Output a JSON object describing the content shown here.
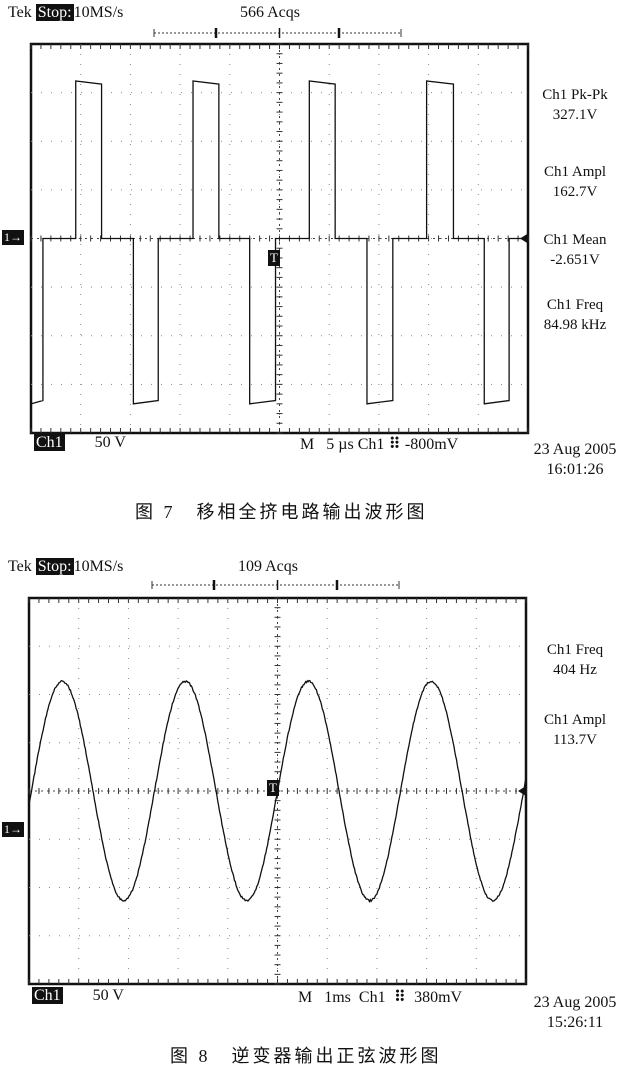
{
  "figures": [
    {
      "header": {
        "brand": "Tek",
        "state": "Stop:",
        "rate": "10MS/s",
        "acqs": "566 Acqs"
      },
      "footer": {
        "channel": "Ch1",
        "volts_div": "50 V",
        "mode": "M",
        "time_div": "5 µs",
        "trig_src": "Ch1",
        "trig_slope_icon": "rising-edge-icon",
        "trig_level": "-800mV"
      },
      "timestamp": {
        "date": "23 Aug 2005",
        "time": "16:01:26"
      },
      "measurements": [
        {
          "label": "Ch1 Pk-Pk",
          "value": "327.1V"
        },
        {
          "label": "Ch1 Ampl",
          "value": "162.7V"
        },
        {
          "label": "Ch1 Mean",
          "value": "-2.651V"
        },
        {
          "label": "Ch1 Freq",
          "value": "84.98 kHz"
        }
      ],
      "ground_marker": "1→",
      "trigger_marker": "T",
      "caption": "图 7　移相全挤电路输出波形图"
    },
    {
      "header": {
        "brand": "Tek",
        "state": "Stop:",
        "rate": "10MS/s",
        "acqs": "109 Acqs"
      },
      "footer": {
        "channel": "Ch1",
        "volts_div": "50 V",
        "mode": "M",
        "time_div": "1ms",
        "trig_src": "Ch1",
        "trig_slope_icon": "rising-edge-icon",
        "trig_level": "380mV"
      },
      "timestamp": {
        "date": "23 Aug 2005",
        "time": "15:26:11"
      },
      "measurements": [
        {
          "label": "Ch1 Freq",
          "value": "404 Hz"
        },
        {
          "label": "Ch1 Ampl",
          "value": "113.7V"
        }
      ],
      "ground_marker": "1→",
      "trigger_marker": "T",
      "caption": "图 8　逆变器输出正弦波形图"
    }
  ],
  "chart_data": [
    {
      "type": "line",
      "waveform": "phase-shifted square pulses",
      "x_unit": "µs",
      "y_unit": "V",
      "x_divisions": 10,
      "y_divisions": 8,
      "time_per_div": 5,
      "volts_per_div": 50,
      "positive_level": 162,
      "negative_level": -170,
      "period": 11.77,
      "positive_pulses": [
        [
          4.5,
          7.1
        ],
        [
          16.3,
          18.9
        ],
        [
          28.0,
          30.6
        ],
        [
          39.8,
          42.5
        ]
      ],
      "negative_pulses": [
        [
          -1.0,
          1.2
        ],
        [
          10.3,
          12.8
        ],
        [
          22.0,
          24.6
        ],
        [
          33.8,
          36.4
        ],
        [
          45.6,
          48.1
        ]
      ],
      "grid": true
    },
    {
      "type": "line",
      "waveform": "sine",
      "x_unit": "ms",
      "y_unit": "V",
      "x_divisions": 10,
      "y_divisions": 8,
      "time_per_div": 1,
      "volts_per_div": 50,
      "amplitude": 113.7,
      "frequency_hz": 404,
      "zero_crossing_rising_ms": 5.0,
      "grid": true
    }
  ]
}
